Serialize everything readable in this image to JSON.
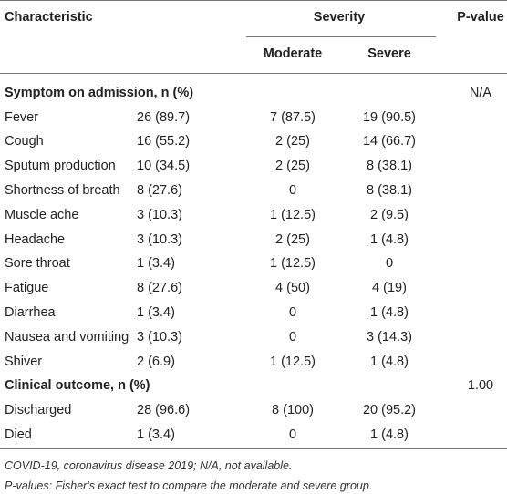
{
  "table": {
    "header": {
      "characteristic": "Characteristic",
      "group": "Severity",
      "p_value": "P-value"
    },
    "subheader": [
      "Moderate",
      "Severe"
    ],
    "sections": [
      {
        "title": "Symptom on admission, n (%)",
        "p_value": "N/A",
        "rows": [
          [
            "Fever",
            "26 (89.7)",
            "7 (87.5)",
            "19 (90.5)"
          ],
          [
            "Cough",
            "16 (55.2)",
            "2 (25)",
            "14 (66.7)"
          ],
          [
            "Sputum production",
            "10 (34.5)",
            "2 (25)",
            "8 (38.1)"
          ],
          [
            "Shortness of breath",
            "8 (27.6)",
            "0",
            "8 (38.1)"
          ],
          [
            "Muscle ache",
            "3 (10.3)",
            "1 (12.5)",
            "2 (9.5)"
          ],
          [
            "Headache",
            "3 (10.3)",
            "2 (25)",
            "1 (4.8)"
          ],
          [
            "Sore throat",
            "1 (3.4)",
            "1 (12.5)",
            "0"
          ],
          [
            "Fatigue",
            "8 (27.6)",
            "4 (50)",
            "4 (19)"
          ],
          [
            "Diarrhea",
            "1 (3.4)",
            "0",
            "1 (4.8)"
          ],
          [
            "Nausea and vomiting",
            "3 (10.3)",
            "0",
            "3 (14.3)"
          ],
          [
            "Shiver",
            "2 (6.9)",
            "1 (12.5)",
            "1 (4.8)"
          ]
        ]
      },
      {
        "title": "Clinical outcome, n (%)",
        "p_value": "1.00",
        "rows": [
          [
            "Discharged",
            "28 (96.6)",
            "8 (100)",
            "20 (95.2)"
          ],
          [
            "Died",
            "1 (3.4)",
            "0",
            "1 (4.8)"
          ]
        ]
      }
    ],
    "footnotes": [
      "COVID-19, coronavirus disease 2019; N/A, not available.",
      "P-values: Fisher's exact test to compare the moderate and severe group."
    ]
  }
}
